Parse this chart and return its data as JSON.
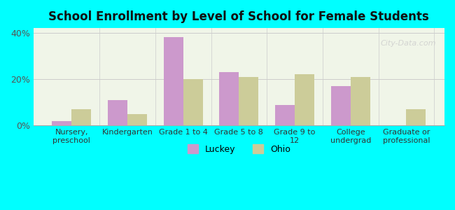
{
  "title": "School Enrollment by Level of School for Female Students",
  "categories": [
    "Nursery,\npreschool",
    "Kindergarten",
    "Grade 1 to 4",
    "Grade 5 to 8",
    "Grade 9 to\n12",
    "College\nundergrad",
    "Graduate or\nprofessional"
  ],
  "luckey": [
    2,
    11,
    38,
    23,
    9,
    17,
    0
  ],
  "ohio": [
    7,
    5,
    20,
    21,
    22,
    21,
    7
  ],
  "luckey_color": "#cc99cc",
  "ohio_color": "#cccc99",
  "ylim": [
    0,
    42
  ],
  "yticks": [
    0,
    20,
    40
  ],
  "ytick_labels": [
    "0%",
    "20%",
    "40%"
  ],
  "background_color": "#00ffff",
  "plot_bg_start": "#f0f5e8",
  "plot_bg_end": "#ffffff",
  "bar_width": 0.35,
  "legend_labels": [
    "Luckey",
    "Ohio"
  ],
  "watermark": "City-Data.com"
}
